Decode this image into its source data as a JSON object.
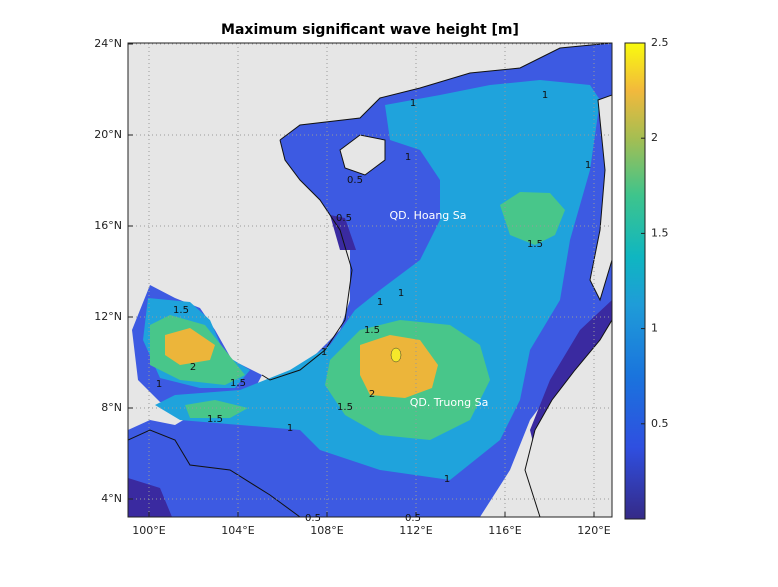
{
  "title": "Maximum significant wave height [m]",
  "xticks": [
    {
      "value": 100,
      "label": "100°E"
    },
    {
      "value": 104,
      "label": "104°E"
    },
    {
      "value": 108,
      "label": "108°E"
    },
    {
      "value": 112,
      "label": "112°E"
    },
    {
      "value": 116,
      "label": "116°E"
    },
    {
      "value": 120,
      "label": "120°E"
    }
  ],
  "yticks": [
    {
      "value": 4,
      "label": "4°N"
    },
    {
      "value": 8,
      "label": "8°N"
    },
    {
      "value": 12,
      "label": "12°N"
    },
    {
      "value": 16,
      "label": "16°N"
    },
    {
      "value": 20,
      "label": "20°N"
    },
    {
      "value": 24,
      "label": "24°N"
    }
  ],
  "colorbar": {
    "clim": [
      0,
      2.5
    ],
    "ticks": [
      0.5,
      1,
      1.5,
      2,
      2.5
    ]
  },
  "places": [
    "QD. Hoang Sa",
    "QD. Truong Sa"
  ],
  "contour_labels": [
    1,
    1,
    1,
    0.5,
    1,
    0.5,
    1.5,
    1,
    1,
    1.5,
    1,
    1.5,
    2,
    1.5,
    1,
    2,
    1.5,
    1.5,
    1,
    1,
    0.5,
    0.5
  ]
}
